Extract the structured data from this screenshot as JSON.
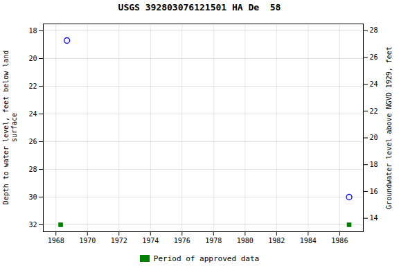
{
  "chart_data": {
    "type": "scatter",
    "title": "USGS 392803076121501 HA De  58",
    "ylabel": "Depth to water level, feet below land\n      surface",
    "y2label": "Groundwater level above NGVD 1929, feet",
    "xlim": [
      1967.2,
      1987.5
    ],
    "xticks": [
      1968,
      1970,
      1972,
      1974,
      1976,
      1978,
      1980,
      1982,
      1984,
      1986
    ],
    "ylim": [
      32.5,
      17.5
    ],
    "yticks": [
      18,
      20,
      22,
      24,
      26,
      28,
      30,
      32
    ],
    "y2lim": [
      13.0,
      28.5
    ],
    "y2ticks": [
      28,
      26,
      24,
      22,
      20,
      18,
      16,
      14
    ],
    "grid": true,
    "legend": "bottom",
    "series": [
      {
        "x": [
          1968.7,
          1986.6
        ],
        "values": [
          18.7,
          30.0
        ],
        "color": "#0000ff",
        "marker": "circle"
      },
      {
        "name": "Period of approved data",
        "x": [
          1968.3,
          1986.6
        ],
        "values": [
          32,
          32
        ],
        "color": "#008000",
        "marker": "square"
      }
    ]
  }
}
